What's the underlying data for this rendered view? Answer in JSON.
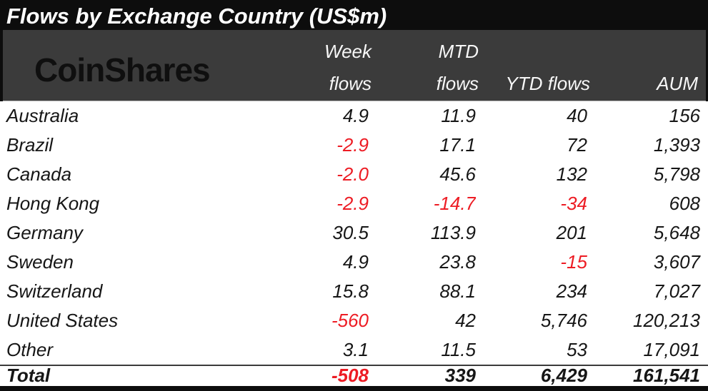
{
  "title": "Flows by Exchange Country (US$m)",
  "brand": {
    "logo_text": "CoinShares"
  },
  "table": {
    "header": {
      "week_line1": "Week",
      "week_line2": "flows",
      "mtd_line1": "MTD",
      "mtd_line2": "flows",
      "ytd": "YTD flows",
      "aum": "AUM"
    },
    "rows": [
      {
        "country": "Australia",
        "week": "4.9",
        "mtd": "11.9",
        "ytd": "40",
        "aum": "156"
      },
      {
        "country": "Brazil",
        "week": "-2.9",
        "mtd": "17.1",
        "ytd": "72",
        "aum": "1,393"
      },
      {
        "country": "Canada",
        "week": "-2.0",
        "mtd": "45.6",
        "ytd": "132",
        "aum": "5,798"
      },
      {
        "country": "Hong Kong",
        "week": "-2.9",
        "mtd": "-14.7",
        "ytd": "-34",
        "aum": "608"
      },
      {
        "country": "Germany",
        "week": "30.5",
        "mtd": "113.9",
        "ytd": "201",
        "aum": "5,648"
      },
      {
        "country": "Sweden",
        "week": "4.9",
        "mtd": "23.8",
        "ytd": "-15",
        "aum": "3,607"
      },
      {
        "country": "Switzerland",
        "week": "15.8",
        "mtd": "88.1",
        "ytd": "234",
        "aum": "7,027"
      },
      {
        "country": "United States",
        "week": "-560",
        "mtd": "42",
        "ytd": "5,746",
        "aum": "120,213"
      },
      {
        "country": "Other",
        "week": "3.1",
        "mtd": "11.5",
        "ytd": "53",
        "aum": "17,091"
      }
    ],
    "total_row": {
      "label": "Total",
      "week": "-508",
      "mtd": "339",
      "ytd": "6,429",
      "aum": "161,541"
    }
  },
  "colors": {
    "title_bar_bg": "#0d0d0d",
    "band_bg": "#3b3b3b",
    "negative": "#ed1c24",
    "body_text": "#161616",
    "header_text": "#f7f7f7"
  },
  "chart_data": {
    "type": "table",
    "title": "Flows by Exchange Country (US$m)",
    "columns": [
      "Country",
      "Week flows",
      "MTD flows",
      "YTD flows",
      "AUM"
    ],
    "rows": [
      [
        "Australia",
        4.9,
        11.9,
        40,
        156
      ],
      [
        "Brazil",
        -2.9,
        17.1,
        72,
        1393
      ],
      [
        "Canada",
        -2.0,
        45.6,
        132,
        5798
      ],
      [
        "Hong Kong",
        -2.9,
        -14.7,
        -34,
        608
      ],
      [
        "Germany",
        30.5,
        113.9,
        201,
        5648
      ],
      [
        "Sweden",
        4.9,
        23.8,
        -15,
        3607
      ],
      [
        "Switzerland",
        15.8,
        88.1,
        234,
        7027
      ],
      [
        "United States",
        -560,
        42,
        5746,
        120213
      ],
      [
        "Other",
        3.1,
        11.5,
        53,
        17091
      ]
    ],
    "total": [
      "Total",
      -508,
      339,
      6429,
      161541
    ],
    "notes": "Negative values rendered in red; all text italic; units US$m"
  }
}
